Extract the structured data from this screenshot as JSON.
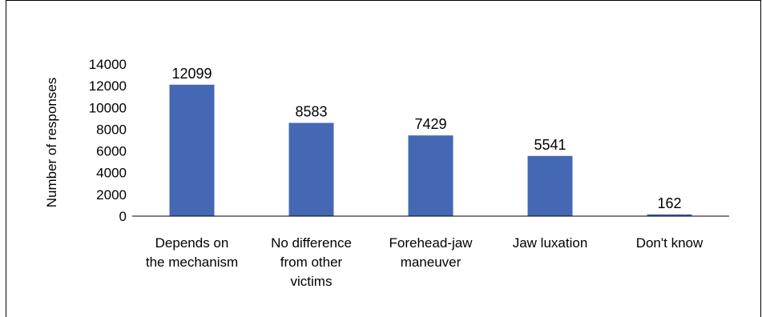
{
  "chart_data": {
    "type": "bar",
    "title": "",
    "xlabel": "",
    "ylabel": "Number of responses",
    "ylim": [
      0,
      14000
    ],
    "yticks": [
      0,
      2000,
      4000,
      6000,
      8000,
      10000,
      12000,
      14000
    ],
    "grid": false,
    "categories": [
      [
        "Depends on",
        "the mechanism"
      ],
      [
        "No difference",
        "from other",
        "victims"
      ],
      [
        "Forehead-jaw",
        "maneuver"
      ],
      [
        "Jaw luxation"
      ],
      [
        "Don't know"
      ]
    ],
    "values": [
      12099,
      8583,
      7429,
      5541,
      162
    ],
    "data_labels": [
      "12099",
      "8583",
      "7429",
      "5541",
      "162"
    ],
    "colors": {
      "bar": "#4468B3",
      "axis": "#000000"
    }
  }
}
